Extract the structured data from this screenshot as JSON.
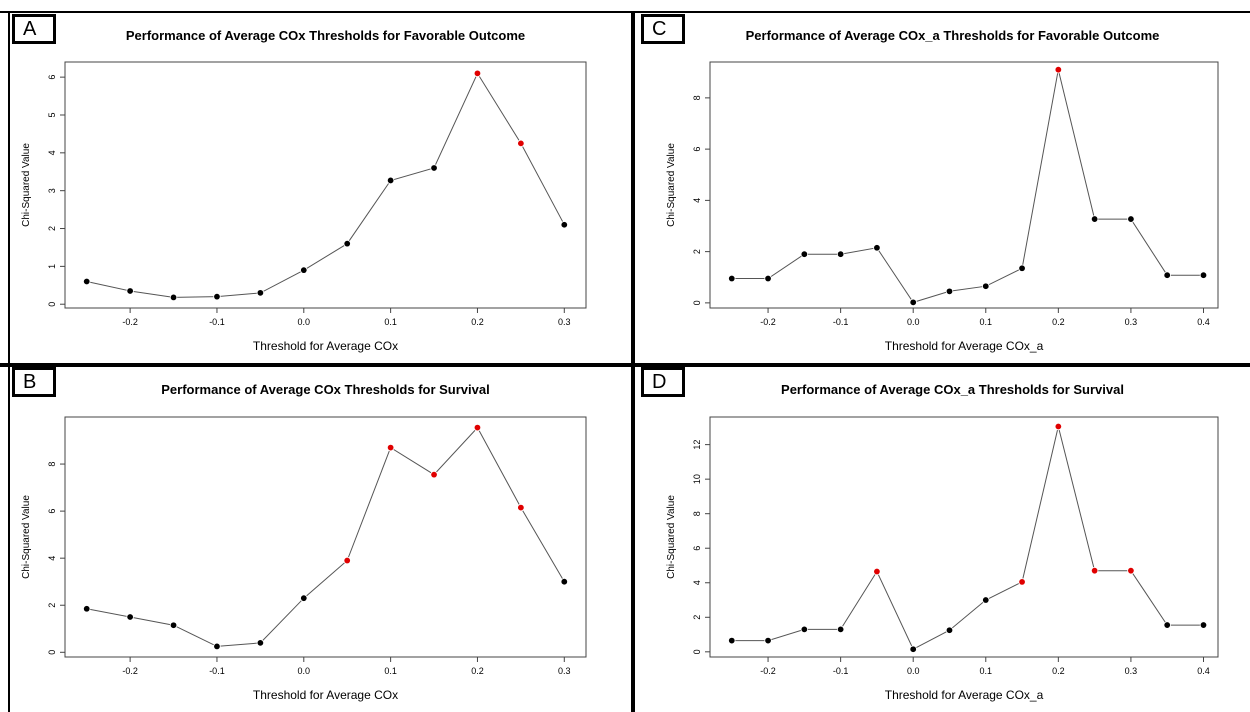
{
  "chart_data": [
    {
      "panel": "A",
      "type": "scatter",
      "title": "Performance of Average COx Thresholds for Favorable Outcome",
      "xlabel": "Threshold for Average COx",
      "ylabel": "Chi-Squared Value",
      "xlim": [
        -0.275,
        0.325
      ],
      "ylim": [
        -0.1,
        6.4
      ],
      "xticks": [
        -0.2,
        -0.1,
        0.0,
        0.1,
        0.2,
        0.3
      ],
      "yticks": [
        0,
        1,
        2,
        3,
        4,
        5,
        6
      ],
      "x": [
        -0.25,
        -0.2,
        -0.15,
        -0.1,
        -0.05,
        0.0,
        0.05,
        0.1,
        0.15,
        0.2,
        0.25,
        0.3
      ],
      "y": [
        0.6,
        0.35,
        0.18,
        0.2,
        0.3,
        0.9,
        1.6,
        3.27,
        3.6,
        6.1,
        4.25,
        2.1
      ],
      "highlighted": [
        false,
        false,
        false,
        false,
        false,
        false,
        false,
        false,
        false,
        true,
        true,
        false
      ],
      "colors": {
        "normal": "#000000",
        "highlight": "#e00000",
        "line": "#555555"
      }
    },
    {
      "panel": "C",
      "type": "scatter",
      "title": "Performance of Average COx_a Thresholds for Favorable Outcome",
      "xlabel": "Threshold for Average COx_a",
      "ylabel": "Chi-Squared Value",
      "xlim": [
        -0.28,
        0.42
      ],
      "ylim": [
        -0.2,
        9.4
      ],
      "xticks": [
        -0.2,
        -0.1,
        0.0,
        0.1,
        0.2,
        0.3,
        0.4
      ],
      "yticks": [
        0,
        2,
        4,
        6,
        8
      ],
      "x": [
        -0.25,
        -0.2,
        -0.15,
        -0.1,
        -0.05,
        0.0,
        0.05,
        0.1,
        0.15,
        0.2,
        0.25,
        0.3,
        0.35,
        0.4
      ],
      "y": [
        0.95,
        0.95,
        1.9,
        1.9,
        2.15,
        0.02,
        0.45,
        0.65,
        1.35,
        9.1,
        3.27,
        3.27,
        1.08,
        1.08
      ],
      "highlighted": [
        false,
        false,
        false,
        false,
        false,
        false,
        false,
        false,
        false,
        true,
        false,
        false,
        false,
        false
      ],
      "colors": {
        "normal": "#000000",
        "highlight": "#e00000",
        "line": "#555555"
      }
    },
    {
      "panel": "B",
      "type": "scatter",
      "title": "Performance of Average COx Thresholds for Survival",
      "xlabel": "Threshold for Average COx",
      "ylabel": "Chi-Squared Value",
      "xlim": [
        -0.275,
        0.325
      ],
      "ylim": [
        -0.2,
        10.0
      ],
      "xticks": [
        -0.2,
        -0.1,
        0.0,
        0.1,
        0.2,
        0.3
      ],
      "yticks": [
        0,
        2,
        4,
        6,
        8
      ],
      "x": [
        -0.25,
        -0.2,
        -0.15,
        -0.1,
        -0.05,
        0.0,
        0.05,
        0.1,
        0.15,
        0.2,
        0.25,
        0.3
      ],
      "y": [
        1.85,
        1.5,
        1.15,
        0.25,
        0.4,
        2.3,
        3.9,
        8.7,
        7.55,
        9.55,
        6.15,
        3.0
      ],
      "highlighted": [
        false,
        false,
        false,
        false,
        false,
        false,
        true,
        true,
        true,
        true,
        true,
        false
      ],
      "colors": {
        "normal": "#000000",
        "highlight": "#e00000",
        "line": "#555555"
      }
    },
    {
      "panel": "D",
      "type": "scatter",
      "title": "Performance of Average COx_a Thresholds for Survival",
      "xlabel": "Threshold for Average COx_a",
      "ylabel": "Chi-Squared Value",
      "xlim": [
        -0.28,
        0.42
      ],
      "ylim": [
        -0.3,
        13.6
      ],
      "xticks": [
        -0.2,
        -0.1,
        0.0,
        0.1,
        0.2,
        0.3,
        0.4
      ],
      "yticks": [
        0,
        2,
        4,
        6,
        8,
        10,
        12
      ],
      "x": [
        -0.25,
        -0.2,
        -0.15,
        -0.1,
        -0.05,
        0.0,
        0.05,
        0.1,
        0.15,
        0.2,
        0.25,
        0.3,
        0.35,
        0.4
      ],
      "y": [
        0.65,
        0.65,
        1.3,
        1.3,
        4.65,
        0.15,
        1.25,
        3.0,
        4.05,
        13.05,
        4.7,
        4.7,
        1.55,
        1.55
      ],
      "highlighted": [
        false,
        false,
        false,
        false,
        true,
        false,
        false,
        false,
        true,
        true,
        true,
        true,
        false,
        false
      ],
      "colors": {
        "normal": "#000000",
        "highlight": "#e00000",
        "line": "#555555"
      }
    }
  ]
}
